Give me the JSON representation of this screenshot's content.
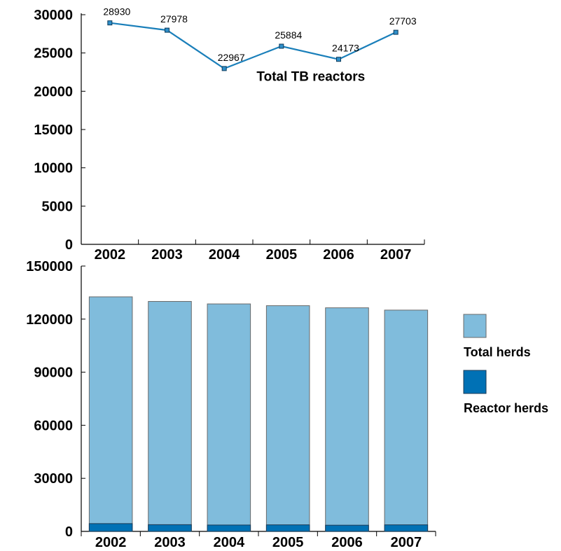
{
  "chart_data": [
    {
      "type": "line",
      "categories": [
        "2002",
        "2003",
        "2004",
        "2005",
        "2006",
        "2007"
      ],
      "series": [
        {
          "name": "Total TB reactors",
          "values": [
            28930,
            27978,
            22967,
            25884,
            24173,
            27703
          ]
        }
      ],
      "data_labels": [
        "28930",
        "27978",
        "22967",
        "25884",
        "24173",
        "27703"
      ],
      "annotation": "Total TB reactors",
      "ylim": [
        0,
        30000
      ],
      "yticks": [
        "30000",
        "25000",
        "20000",
        "15000",
        "10000",
        "5000",
        "0"
      ],
      "grid": false,
      "colors": {
        "line": "#1a7fba",
        "marker": "#2e8fc9"
      }
    },
    {
      "type": "bar",
      "stacked": true,
      "categories": [
        "2002",
        "2003",
        "2004",
        "2005",
        "2006",
        "2007"
      ],
      "series": [
        {
          "name": "Reactor herds",
          "values": [
            4400,
            3800,
            3600,
            3700,
            3500,
            3700
          ],
          "color": "#0071b5"
        },
        {
          "name": "Total herds",
          "values": [
            132600,
            130000,
            128600,
            127600,
            126400,
            125100
          ],
          "color": "#80bcdc",
          "note": "bar top shows total herds"
        }
      ],
      "ylim": [
        0,
        150000
      ],
      "yticks": [
        "150000",
        "120000",
        "90000",
        "60000",
        "30000",
        "0"
      ],
      "grid": false,
      "legend": {
        "placement": "right",
        "items": [
          {
            "label": "Total herds",
            "color": "#80bcdc"
          },
          {
            "label": "Reactor herds",
            "color": "#0071b5"
          }
        ]
      }
    }
  ]
}
